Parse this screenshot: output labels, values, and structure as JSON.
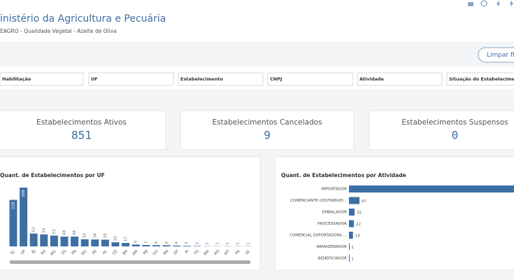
{
  "header": {
    "title": "inistério da Agricultura e Pecuária",
    "subtitle": "EAGRO - Qualidade Vegetal - Azeite de Oliva"
  },
  "button": "Limpar fi",
  "filters": [
    "Habilitação",
    "UF",
    "Estabelecimento",
    "CNPJ",
    "Atividade",
    "Situação do Estabelecimento"
  ],
  "kpis": [
    {
      "label": "Estabelecimentos Ativos",
      "value": 851
    },
    {
      "label": "Estabelecimentos Cancelados",
      "value": 9
    },
    {
      "label": "Estabelecimentos Suspensos",
      "value": 0
    }
  ],
  "chart_data": [
    {
      "type": "bar",
      "title": "Quant. de Estabelecimentos por UF",
      "color": "#3d6fa5",
      "categories": [
        "SC",
        "SP",
        "RJ",
        "RS",
        "MG",
        "ES",
        "PR",
        "RO",
        "PE",
        "AL",
        "CE",
        "BA",
        "AM",
        "PB",
        "GO",
        "RN",
        "DF",
        "PI",
        "TO",
        "MA",
        "MS",
        "MT",
        "PA",
        "SE"
      ],
      "values": [
        228,
        288,
        63,
        59,
        53,
        48,
        48,
        35,
        34,
        33,
        20,
        17,
        9,
        7,
        6,
        6,
        4,
        3,
        2,
        1,
        1,
        1,
        1,
        1
      ]
    },
    {
      "type": "hbar",
      "title": "Quant. de Estabelecimentos por Atividade",
      "color": "#3d6fa5",
      "categories": [
        "IMPORTADOR",
        "COMERCIANTE (DISTRIBUID...",
        "EMBALADOR",
        "PROCESSADOR",
        "COMERCIAL EXPORTADORA ...",
        "ARMAZENADOR",
        "BENEFICIADOR"
      ],
      "values": [
        737,
        47,
        25,
        22,
        18,
        1,
        1
      ]
    }
  ]
}
